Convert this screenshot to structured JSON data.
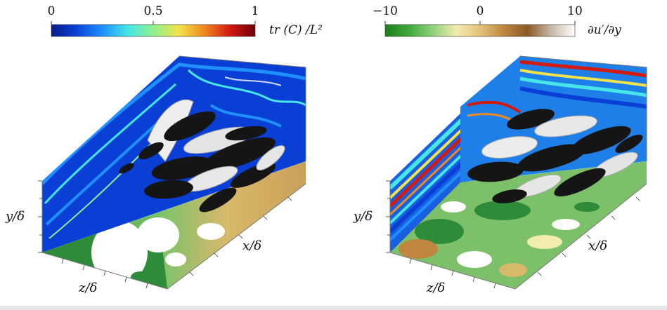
{
  "left_panel": {
    "colorbar": {
      "label": "tr (C) /L²",
      "ticks": [
        "0",
        "0.5",
        "1"
      ],
      "stops": [
        "#0a1a8a",
        "#0a44d8",
        "#1e90ff",
        "#46e6e6",
        "#8ef08e",
        "#f3e24a",
        "#f08a1e",
        "#d21a10",
        "#6e0008"
      ]
    },
    "axes": {
      "y": "y/δ",
      "z": "z/δ",
      "x": "x/δ"
    }
  },
  "right_panel": {
    "colorbar": {
      "label": "∂u′/∂y",
      "ticks": [
        "−10",
        "0",
        "10"
      ],
      "stops": [
        "#1b7f1b",
        "#3fa83a",
        "#8fd07a",
        "#f2ecb0",
        "#e2c27a",
        "#c08640",
        "#8a5a26",
        "#c8b8a8",
        "#ffffff"
      ]
    },
    "axes": {
      "y": "y/δ",
      "z": "z/δ",
      "x": "x/δ"
    }
  }
}
